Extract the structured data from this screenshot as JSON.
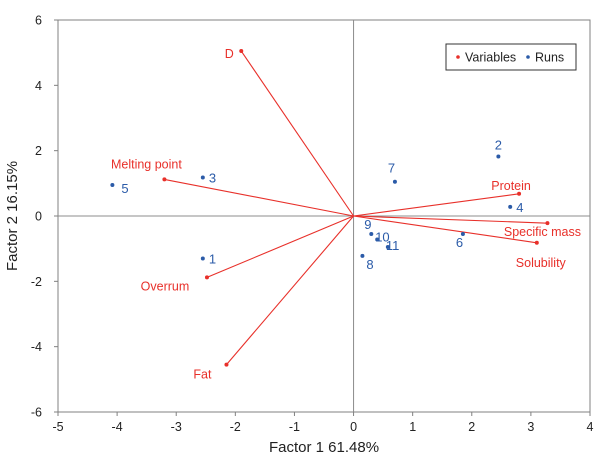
{
  "chart_data": {
    "type": "scatter",
    "xlabel": "Factor 1 61.48%",
    "ylabel": "Factor 2 16.15%",
    "xlim": [
      -5,
      4
    ],
    "ylim": [
      -6,
      6
    ],
    "x_ticks": [
      "-5",
      "-4",
      "-3",
      "-2",
      "-1",
      "0",
      "1",
      "2",
      "3",
      "4"
    ],
    "y_ticks": [
      "6",
      "4",
      "2",
      "0",
      "-2",
      "-4",
      "-6"
    ],
    "grid": false,
    "legend_position": "top-right",
    "legend": [
      {
        "name": "Variables",
        "color": "#e8302a"
      },
      {
        "name": "Runs",
        "color": "#2b5ba8"
      }
    ],
    "variables": [
      {
        "label": "D",
        "x": -1.9,
        "y": 5.05
      },
      {
        "label": "Melting point",
        "x": -3.2,
        "y": 1.12
      },
      {
        "label": "Overrum",
        "x": -2.48,
        "y": -1.88
      },
      {
        "label": "Fat",
        "x": -2.15,
        "y": -4.55
      },
      {
        "label": "Protein",
        "x": 2.8,
        "y": 0.68
      },
      {
        "label": "Specific mass",
        "x": 3.28,
        "y": -0.22
      },
      {
        "label": "Solubility",
        "x": 3.1,
        "y": -0.82
      }
    ],
    "runs": [
      {
        "label": "1",
        "x": -2.55,
        "y": -1.3
      },
      {
        "label": "2",
        "x": 2.45,
        "y": 1.82
      },
      {
        "label": "3",
        "x": -2.55,
        "y": 1.18
      },
      {
        "label": "4",
        "x": 2.65,
        "y": 0.28
      },
      {
        "label": "5",
        "x": -4.08,
        "y": 0.95
      },
      {
        "label": "6",
        "x": 1.85,
        "y": -0.55
      },
      {
        "label": "7",
        "x": 0.7,
        "y": 1.05
      },
      {
        "label": "8",
        "x": 0.15,
        "y": -1.22
      },
      {
        "label": "9",
        "x": 0.3,
        "y": -0.55
      },
      {
        "label": "10",
        "x": 0.4,
        "y": -0.72
      },
      {
        "label": "11",
        "x": 0.58,
        "y": -0.95
      }
    ]
  }
}
